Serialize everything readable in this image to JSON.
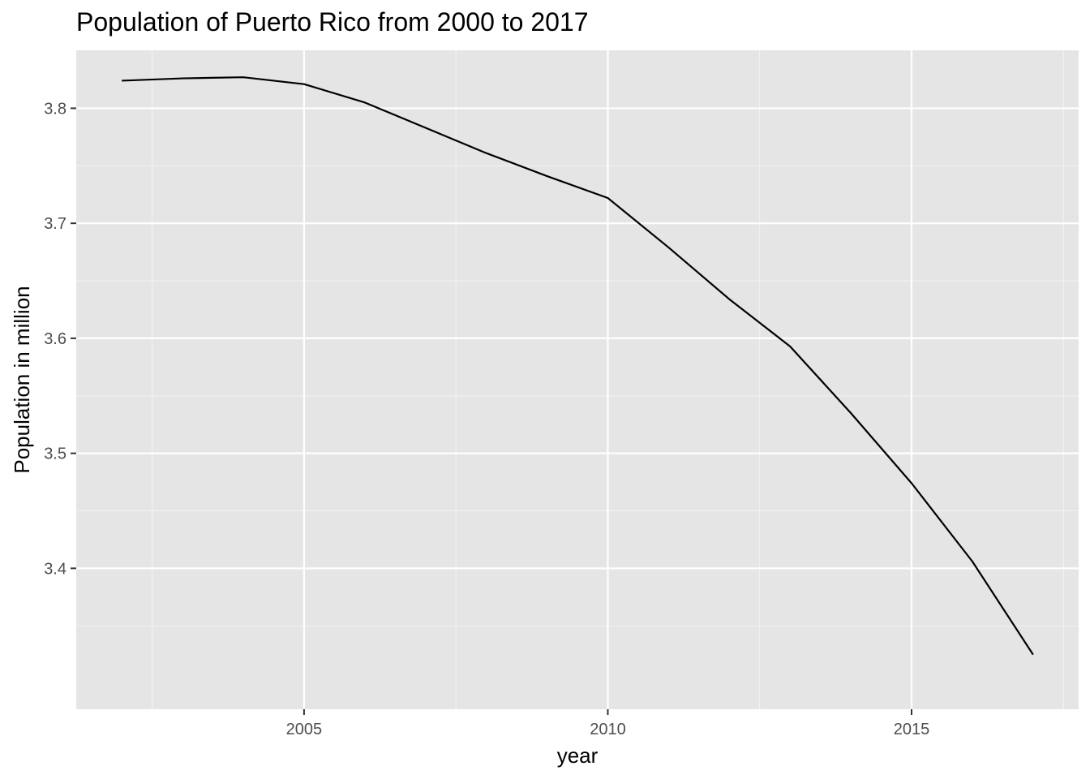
{
  "chart_data": {
    "type": "line",
    "title": "Population of Puerto Rico from 2000 to 2017",
    "xlabel": "year",
    "ylabel": "Population in million",
    "xlim": [
      2001.25,
      2017.75
    ],
    "ylim": [
      3.2775,
      3.8504
    ],
    "x_ticks": [
      2005,
      2010,
      2015
    ],
    "x_tick_labels": [
      "2005",
      "2010",
      "2015"
    ],
    "x_minor_ticks": [
      2002.5,
      2007.5,
      2012.5,
      2017.5
    ],
    "y_ticks": [
      3.4,
      3.5,
      3.6,
      3.7,
      3.8
    ],
    "y_tick_labels": [
      "3.4",
      "3.5",
      "3.6",
      "3.7",
      "3.8"
    ],
    "y_minor_ticks": [
      3.35,
      3.45,
      3.55,
      3.65,
      3.75
    ],
    "grid": true,
    "colors": {
      "panel_background": "#e5e5e5",
      "grid_major": "#ffffff",
      "grid_minor": "#f2f2f2",
      "line": "#000000",
      "tick_label": "#4d4d4d",
      "tick_mark": "#333333"
    },
    "series": [
      {
        "x": [
          2002,
          2003,
          2004,
          2005,
          2006,
          2007,
          2008,
          2009,
          2010,
          2011,
          2012,
          2013,
          2014,
          2015,
          2016,
          2017
        ],
        "y": [
          3.824,
          3.826,
          3.827,
          3.821,
          3.805,
          3.783,
          3.761,
          3.741,
          3.722,
          3.679,
          3.634,
          3.593,
          3.535,
          3.474,
          3.406,
          3.325
        ]
      }
    ]
  }
}
